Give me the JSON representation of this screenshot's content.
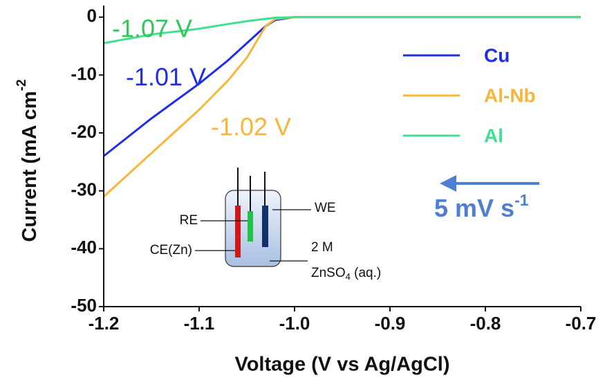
{
  "chart_data": {
    "type": "line",
    "x_label": "Voltage (V vs Ag/AgCl)",
    "y_label": {
      "text": "Current (mA cm",
      "superscript": "-2"
    },
    "x": [
      -1.2,
      -1.15,
      -1.1,
      -1.07,
      -1.05,
      -1.03,
      -1.02,
      -1.0,
      -0.7
    ],
    "series": [
      {
        "name": "Cu",
        "color": "#1e2ee6",
        "values": [
          -24,
          -17.5,
          -11.5,
          -7.5,
          -4.5,
          -1.5,
          -0.5,
          0,
          0
        ]
      },
      {
        "name": "Al-Nb",
        "color": "#f9b537",
        "values": [
          -31,
          -23.5,
          -16,
          -11,
          -7,
          -1.5,
          -0.3,
          0,
          0
        ]
      },
      {
        "name": "Al",
        "color": "#3fe08f",
        "values": [
          -4.5,
          -3,
          -2,
          -1.2,
          -0.7,
          -0.3,
          -0.1,
          0,
          0
        ]
      }
    ],
    "xlim": [
      -1.2,
      -0.7
    ],
    "ylim": [
      -50,
      2
    ],
    "xticks": [
      -1.2,
      -1.1,
      {
        "value": -1,
        "label": "-1.0"
      },
      -0.9,
      -0.8,
      -0.7
    ],
    "yticks": [
      0,
      -10,
      -20,
      -30,
      -40,
      -50
    ],
    "legend": "upper right",
    "annotations": [
      {
        "text": "-1.07 V",
        "color": "#2ec85a"
      },
      {
        "text": "-1.01 V",
        "color": "#1e2ee6"
      },
      {
        "text": "-1.02 V",
        "color": "#f9b537"
      }
    ],
    "scan_rate": {
      "text": "5 mV s",
      "superscript": "-1",
      "color": "#4f7fd0"
    },
    "inset": {
      "labels": [
        "RE",
        "WE",
        "CE(Zn)",
        "2 M"
      ],
      "solution": {
        "text": "ZnSO",
        "subscript": "4",
        "suffix": " (aq.)"
      }
    }
  }
}
